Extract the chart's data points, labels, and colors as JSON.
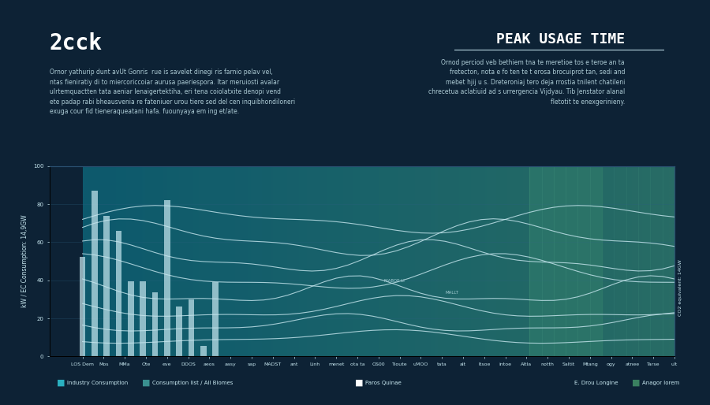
{
  "title_left": "2cck",
  "title_right": "PEAK USAGE TIME",
  "subtitle_left": "Ornor yathurip dunt avUt Gonris  rue is savelet dinegi ris farnio pelav vel,\nntas fieniratiy di to miercoriccoiar aurusa paeriespora. Itar meruiosti avalar\nulrtemquactten tata aeniar lenaigertektiha, eri tena coiolatxite denopi vend\nete padap rabi bheausvenia re fateniuer urou tiere sed del cen inquibhondiloneri\nexuga cour fid tieneraqueatani hafa. fuounyaya em ing et/ate.",
  "subtitle_right": "Ornod perciod veb bethiem tna te meretioe tos e teroe an ta\nfretecton, nota e fo ten te t erosa brocuiprot tan, sedi and\nmebet hjij u s. Dreteroniaj tero deja rrostia tnilent chatileni\nchrecetua aclatiuid ad s urrergencia Vijdyau. Tib Jenstator alanal\nfletotit te enexgerinieny.",
  "bg_color": "#0d2235",
  "chart_bg_left": "#0d4a6e",
  "chart_bg_right": "#2d7a6e",
  "n_days": 50,
  "n_lines": 8,
  "bar_color": "#c8e8f0",
  "line_color": "#c8e8f0",
  "peak_highlight_color": "#2d7a6e",
  "ylim": [
    0,
    100
  ],
  "ylabel": "kW / EC Consumption: 14,9GW",
  "legend_items": [
    "Industry Consumption",
    "Consumption list / All Biomes",
    "Paros Quinae",
    "E. Drou Longine",
    "Anagor lorem"
  ]
}
